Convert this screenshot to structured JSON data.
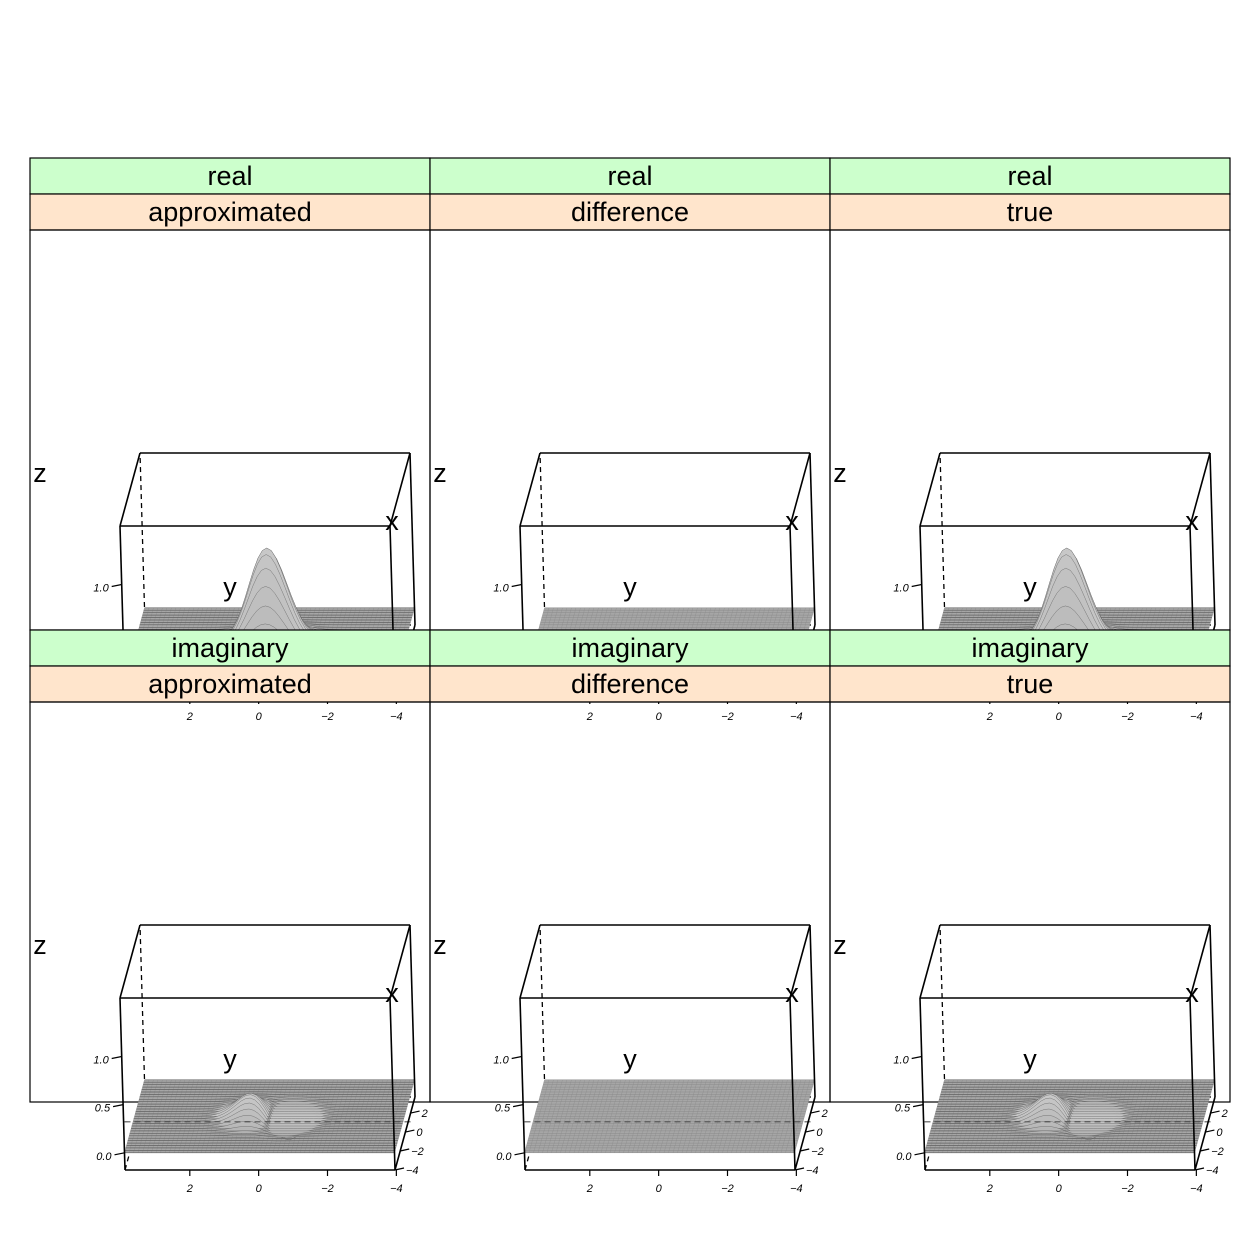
{
  "colors": {
    "strip_top": "#CCFFCC",
    "strip_bottom": "#FFE5CC",
    "surface": "#9a9a9a",
    "frame": "#000000"
  },
  "chart_data": {
    "type": "wireframe-3d-trellis",
    "layout": {
      "columns": 3,
      "rows": 2
    },
    "axis_labels": {
      "x": "x",
      "y": "y",
      "z": "z"
    },
    "x_ticks": [
      "2",
      "0",
      "−2",
      "−4"
    ],
    "y_ticks": [
      "2",
      "0",
      "−2",
      "−4"
    ],
    "z_ticks": [
      "0.0",
      "0.5",
      "1.0"
    ],
    "zlim": [
      0,
      1.25
    ],
    "panels": [
      {
        "strip_top": "real",
        "strip_bottom": "approximated",
        "surface": "gaussian",
        "peak_z": 1.0
      },
      {
        "strip_top": "real",
        "strip_bottom": "difference",
        "surface": "flat",
        "peak_z": 0.0
      },
      {
        "strip_top": "real",
        "strip_bottom": "true",
        "surface": "gaussian",
        "peak_z": 1.0
      },
      {
        "strip_top": "imaginary",
        "strip_bottom": "approximated",
        "surface": "dipole",
        "peak_z": 0.4
      },
      {
        "strip_top": "imaginary",
        "strip_bottom": "difference",
        "surface": "flat",
        "peak_z": 0.0
      },
      {
        "strip_top": "imaginary",
        "strip_bottom": "true",
        "surface": "dipole",
        "peak_z": 0.4
      }
    ]
  }
}
